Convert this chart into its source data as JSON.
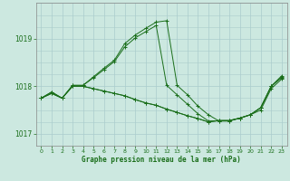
{
  "title": "Graphe pression niveau de la mer (hPa)",
  "bg_color": "#cce8e0",
  "grid_color": "#aacccc",
  "line_color": "#1a6e1a",
  "xlim": [
    -0.5,
    23.5
  ],
  "ylim": [
    1016.75,
    1019.75
  ],
  "yticks": [
    1017,
    1018,
    1019
  ],
  "xticks": [
    0,
    1,
    2,
    3,
    4,
    5,
    6,
    7,
    8,
    9,
    10,
    11,
    12,
    13,
    14,
    15,
    16,
    17,
    18,
    19,
    20,
    21,
    22,
    23
  ],
  "series": [
    [
      1017.75,
      1017.85,
      1017.75,
      1018.0,
      1018.0,
      1017.95,
      1017.9,
      1017.85,
      1017.8,
      1017.72,
      1017.65,
      1017.6,
      1017.52,
      1017.45,
      1017.38,
      1017.32,
      1017.25,
      1017.28,
      1017.28,
      1017.33,
      1017.4,
      1017.5,
      1017.95,
      1018.15
    ],
    [
      1017.75,
      1017.85,
      1017.75,
      1018.0,
      1018.0,
      1017.95,
      1017.9,
      1017.85,
      1017.8,
      1017.72,
      1017.65,
      1017.6,
      1017.52,
      1017.45,
      1017.38,
      1017.32,
      1017.25,
      1017.28,
      1017.28,
      1017.33,
      1017.4,
      1017.55,
      1018.0,
      1018.2
    ],
    [
      1017.75,
      1017.88,
      1017.75,
      1018.02,
      1018.02,
      1018.18,
      1018.35,
      1018.52,
      1018.83,
      1019.02,
      1019.15,
      1019.28,
      1018.02,
      1017.82,
      1017.62,
      1017.42,
      1017.27,
      1017.27,
      1017.27,
      1017.33,
      1017.4,
      1017.55,
      1018.0,
      1018.18
    ],
    [
      1017.75,
      1017.88,
      1017.75,
      1018.02,
      1018.02,
      1018.2,
      1018.38,
      1018.55,
      1018.9,
      1019.08,
      1019.22,
      1019.35,
      1019.38,
      1018.02,
      1017.82,
      1017.58,
      1017.4,
      1017.27,
      1017.27,
      1017.33,
      1017.4,
      1017.55,
      1018.0,
      1018.22
    ]
  ]
}
